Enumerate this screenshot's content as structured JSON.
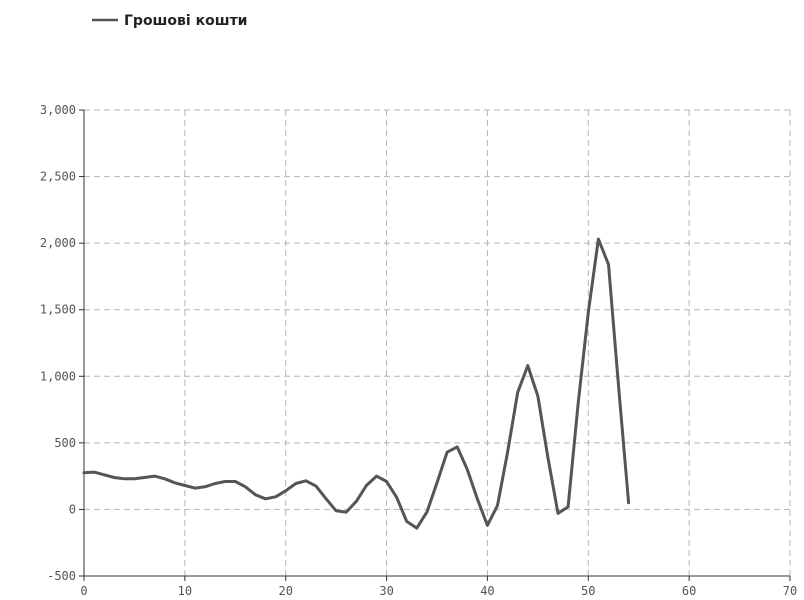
{
  "chart_data": {
    "type": "line",
    "title": "",
    "xlabel": "",
    "ylabel": "",
    "xlim": [
      0,
      70
    ],
    "ylim": [
      -500,
      3000
    ],
    "x_ticks": [
      0,
      10,
      20,
      30,
      40,
      50,
      60,
      70
    ],
    "y_ticks": [
      -500,
      0,
      500,
      1000,
      1500,
      2000,
      2500,
      3000
    ],
    "x_tick_labels": [
      "0",
      "10",
      "20",
      "30",
      "40",
      "50",
      "60",
      "70"
    ],
    "y_tick_labels": [
      "-500",
      "0",
      "500",
      "1,000",
      "1,500",
      "2,000",
      "2,500",
      "3,000"
    ],
    "grid": true,
    "legend_position": "top-left",
    "series": [
      {
        "name": "Грошові кошти",
        "color": "#555555",
        "x": [
          0,
          1,
          2,
          3,
          4,
          5,
          6,
          7,
          8,
          9,
          10,
          11,
          12,
          13,
          14,
          15,
          16,
          17,
          18,
          19,
          20,
          21,
          22,
          23,
          24,
          25,
          26,
          27,
          28,
          29,
          30,
          31,
          32,
          33,
          34,
          35,
          36,
          37,
          38,
          39,
          40,
          41,
          42,
          43,
          44,
          45,
          46,
          47,
          48,
          49,
          50,
          51,
          52,
          53,
          54
        ],
        "y": [
          275,
          280,
          260,
          240,
          230,
          230,
          240,
          250,
          230,
          200,
          180,
          160,
          170,
          195,
          210,
          210,
          170,
          110,
          80,
          95,
          140,
          195,
          215,
          175,
          80,
          -10,
          -20,
          60,
          180,
          250,
          210,
          90,
          -90,
          -140,
          -20,
          200,
          430,
          470,
          300,
          80,
          -120,
          30,
          430,
          880,
          1080,
          850,
          390,
          -30,
          20,
          800,
          1480,
          2030,
          1840,
          930,
          50
        ]
      }
    ]
  }
}
